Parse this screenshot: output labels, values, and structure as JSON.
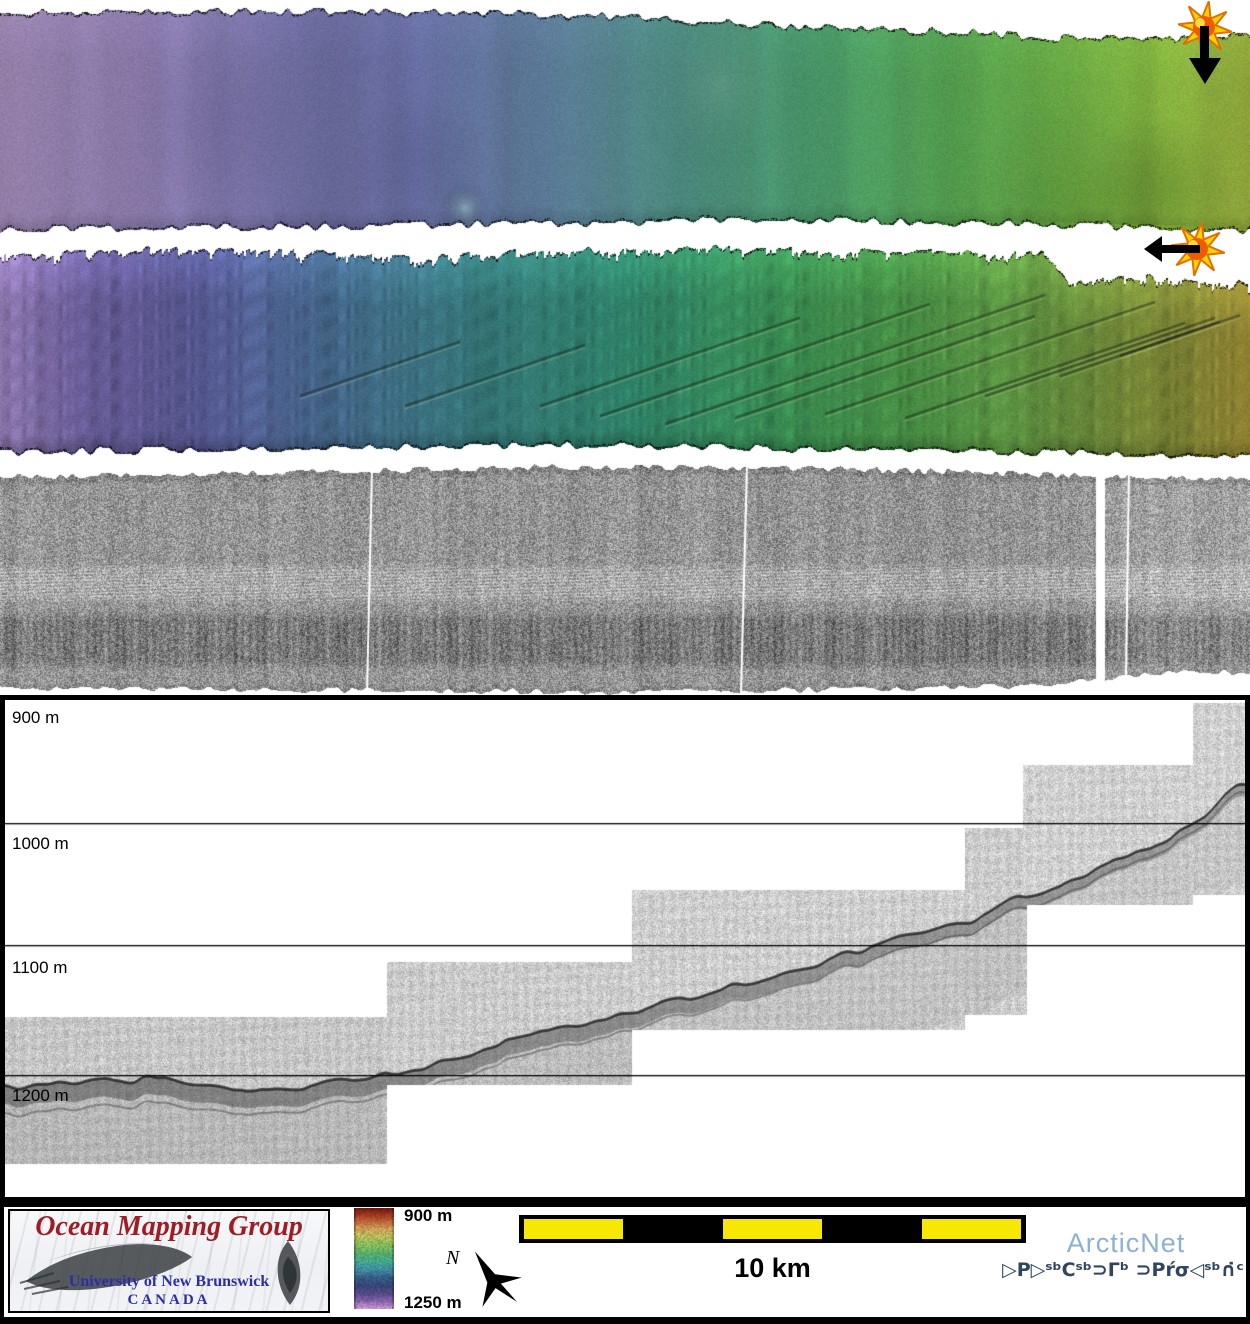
{
  "profile": {
    "depth_labels": [
      "900 m",
      "1000 m",
      "1100 m",
      "1200 m"
    ]
  },
  "legend": {
    "colorbar": {
      "top_label": "900 m",
      "bottom_label": "1250 m",
      "depth_range_m": [
        900,
        1250
      ]
    },
    "scalebar": {
      "label": "10 km",
      "segments": 5,
      "yellow": "#f6e800",
      "black": "#000000"
    },
    "compass": {
      "north": "N"
    }
  },
  "branding": {
    "omg": {
      "title": "Ocean Mapping Group",
      "university": "University of New Brunswick",
      "country": "CANADA",
      "title_color": "#9e1d24",
      "text_color": "#2b2da9"
    },
    "arcticnet": {
      "name": "ArcticNet",
      "inuktitut": "▷P▷ˢᵇCˢᵇ⊃Γᵇ ⊃Pŕσ◁ˢᵇ∩̇ᶜ",
      "name_color": "#8cb0d6",
      "inuktitut_color": "#2f4560"
    }
  }
}
